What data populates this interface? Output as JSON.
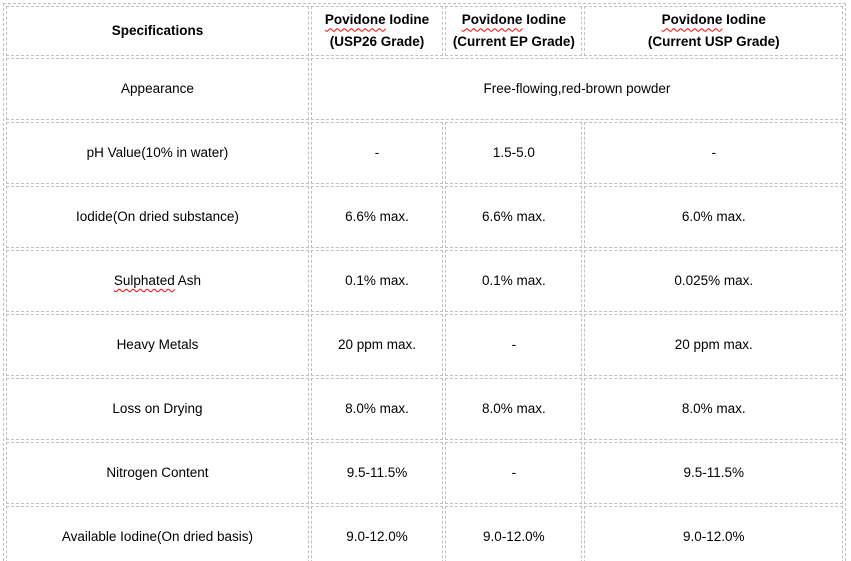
{
  "page": {
    "background_color": "#ffffff",
    "text_color": "#000000",
    "border_color": "#c0c0c0",
    "squiggle_color": "#ff0000"
  },
  "table": {
    "header": {
      "specifications": "Specifications",
      "cols": [
        {
          "brand": "Povidone",
          "brand_rest": " Iodine",
          "grade": "(USP26 Grade)"
        },
        {
          "brand": "Povidone",
          "brand_rest": " Iodine",
          "grade": "(Current EP Grade)"
        },
        {
          "brand": "Povidone",
          "brand_rest": " Iodine",
          "grade": "(Current USP Grade)"
        }
      ]
    },
    "rows": [
      {
        "label": "Appearance",
        "merged": "Free-flowing,red-brown powder"
      },
      {
        "label": "pH Value(10% in water)",
        "values": [
          "-",
          "1.5-5.0",
          "-"
        ]
      },
      {
        "label": "Iodide(On dried substance)",
        "values": [
          "6.6% max.",
          "6.6% max.",
          "6.0% max."
        ]
      },
      {
        "label_word": "Sulphated",
        "label_rest": " Ash",
        "values": [
          "0.1% max.",
          "0.1% max.",
          "0.025% max."
        ]
      },
      {
        "label": "Heavy Metals",
        "values": [
          "20 ppm max.",
          "-",
          "20 ppm max."
        ]
      },
      {
        "label": "Loss on Drying",
        "values": [
          "8.0% max.",
          "8.0% max.",
          "8.0% max."
        ]
      },
      {
        "label": "Nitrogen Content",
        "values": [
          "9.5-11.5%",
          "-",
          "9.5-11.5%"
        ]
      },
      {
        "label": "Available Iodine(On dried basis)",
        "values": [
          "9.0-12.0%",
          "9.0-12.0%",
          "9.0-12.0%"
        ]
      }
    ]
  }
}
